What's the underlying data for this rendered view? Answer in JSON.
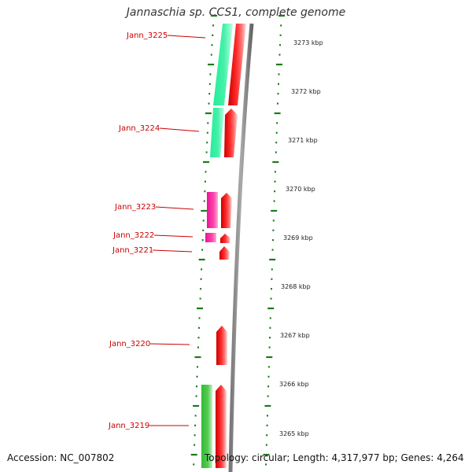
{
  "title": "Jannaschia sp. CCS1, complete genome",
  "footer": {
    "accession": "Accession: NC_007802",
    "topology": "Topology: circular; Length: 4,317,977 bp; Genes: 4,264"
  },
  "colors": {
    "cds": "#ee0000",
    "gene_mint": "#22ee99",
    "gene_magenta": "#ee1199",
    "gene_green": "#33bb33",
    "ticks": "#1a7a1a",
    "label": "#cc0000",
    "backbone": "#888888"
  },
  "kbp_labels": [
    "3273 kbp",
    "3272 kbp",
    "3271 kbp",
    "3270 kbp",
    "3269 kbp",
    "3268 kbp",
    "3267 kbp",
    "3266 kbp",
    "3265 kbp"
  ],
  "genes": [
    {
      "name": "Jann_3225"
    },
    {
      "name": "Jann_3224"
    },
    {
      "name": "Jann_3223"
    },
    {
      "name": "Jann_3222"
    },
    {
      "name": "Jann_3221"
    },
    {
      "name": "Jann_3220"
    },
    {
      "name": "Jann_3219"
    }
  ]
}
